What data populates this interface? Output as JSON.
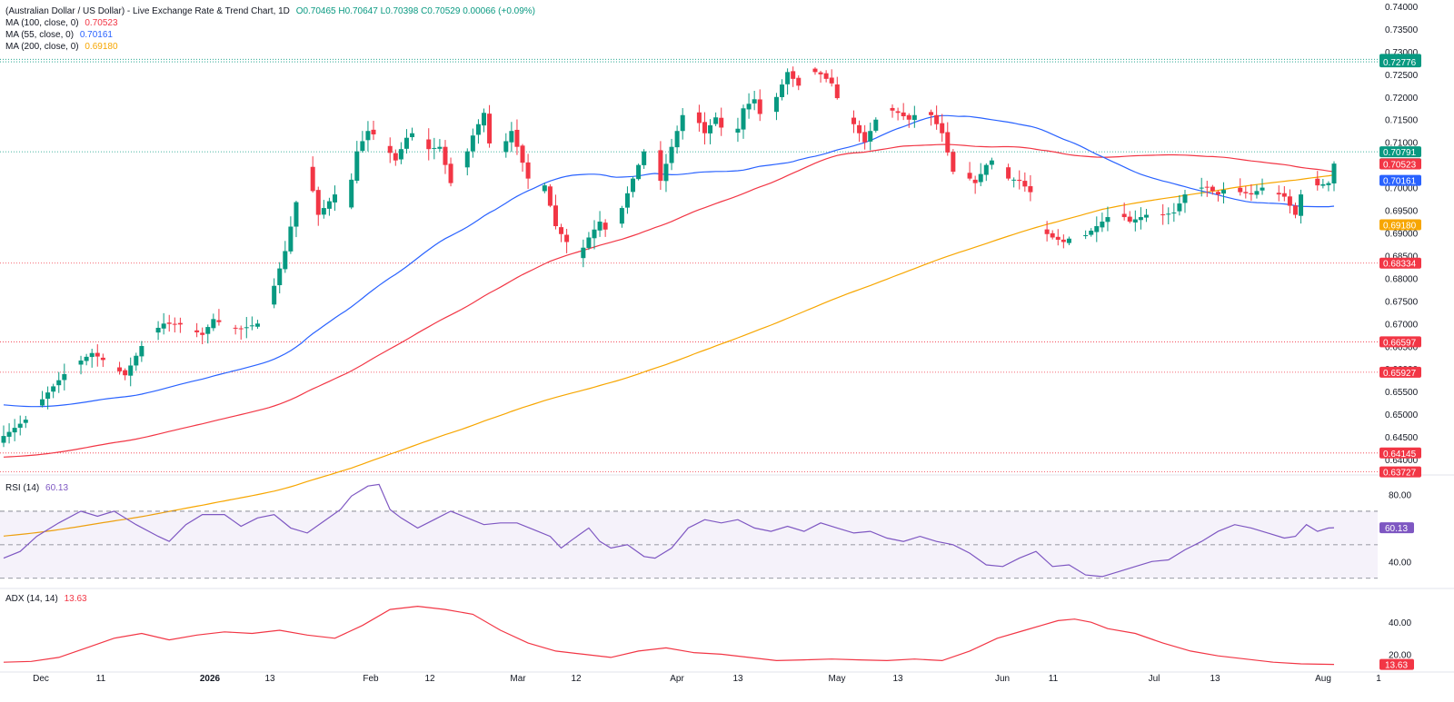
{
  "legend": {
    "title": "(Australian Dollar / US Dollar) - Live Exchange Rate & Trend Chart, 1D",
    "ohlc": {
      "o": "O0.70465",
      "h": "H0.70647",
      "l": "L0.70398",
      "c": "C0.70529",
      "chg": "0.00066 (+0.09%)"
    },
    "ma100": {
      "label": "MA (100, close, 0)",
      "value": "0.70523"
    },
    "ma55": {
      "label": "MA (55, close, 0)",
      "value": "0.70161"
    },
    "ma200": {
      "label": "MA (200, close, 0)",
      "value": "0.69180"
    },
    "rsi": {
      "label": "RSI (14)",
      "value": "60.13"
    },
    "adx": {
      "label": "ADX (14, 14)",
      "value": "13.63"
    }
  },
  "colors": {
    "up": "#089981",
    "down": "#f23645",
    "ma55": "#2962ff",
    "ma100": "#f23645",
    "ma200": "#f7a600",
    "rsi": "#7e57c2",
    "adx": "#f23645",
    "resistance": "#089981",
    "support": "#f23645"
  },
  "chart_data": [
    {
      "type": "candlestick",
      "title": "(Australian Dollar / US Dollar) - Live Exchange Rate & Trend Chart, 1D",
      "y_ticks": [
        "0.74000",
        "0.73500",
        "0.73000",
        "0.72500",
        "0.72000",
        "0.71500",
        "0.71000",
        "0.70500",
        "0.70000",
        "0.69500",
        "0.69000",
        "0.68500",
        "0.68000",
        "0.67500",
        "0.67000",
        "0.66500",
        "0.66000",
        "0.65500",
        "0.65000",
        "0.64500",
        "0.64000"
      ],
      "ylim": [
        0.6372,
        0.741
      ],
      "x_labels": [
        "Dec",
        "11",
        "2026",
        "13",
        "Feb",
        "12",
        "Mar",
        "12",
        "Apr",
        "13",
        "May",
        "13",
        "Jun",
        "11",
        "Jul",
        "13",
        "Aug",
        "1"
      ],
      "x_bold": [
        "2026"
      ],
      "levels": [
        {
          "value": 0.72831,
          "label": "0.72831",
          "kind": "resistance"
        },
        {
          "value": 0.72776,
          "label": "0.72776",
          "kind": "resistance"
        },
        {
          "value": 0.70791,
          "label": "0.70791",
          "kind": "resistance"
        },
        {
          "value": 0.68334,
          "label": "0.68334",
          "kind": "support"
        },
        {
          "value": 0.66597,
          "label": "0.66597",
          "kind": "support"
        },
        {
          "value": 0.65927,
          "label": "0.65927",
          "kind": "support"
        },
        {
          "value": 0.64145,
          "label": "0.64145",
          "kind": "support"
        },
        {
          "value": 0.63727,
          "label": "0.63727",
          "kind": "support"
        }
      ],
      "price_tags": [
        {
          "value": 0.70529,
          "label": "0.70529",
          "color": "#089981"
        },
        {
          "value": 0.70523,
          "label": "0.70523",
          "color": "#f23645"
        },
        {
          "value": 0.70161,
          "label": "0.70161",
          "color": "#2962ff"
        },
        {
          "value": 0.6918,
          "label": "0.69180",
          "color": "#f7a600"
        }
      ],
      "close_path": [
        [
          0,
          0.6452
        ],
        [
          4,
          0.6488
        ],
        [
          8,
          0.6548
        ],
        [
          12,
          0.6602
        ],
        [
          16,
          0.6635
        ],
        [
          19,
          0.6612
        ],
        [
          22,
          0.6586
        ],
        [
          26,
          0.6672
        ],
        [
          29,
          0.67
        ],
        [
          32,
          0.6698
        ],
        [
          36,
          0.6675
        ],
        [
          38,
          0.671
        ],
        [
          41,
          0.669
        ],
        [
          43,
          0.6688
        ],
        [
          46,
          0.67
        ],
        [
          48,
          0.6745
        ],
        [
          51,
          0.686
        ],
        [
          53,
          0.6968
        ],
        [
          55,
          0.7045
        ],
        [
          57,
          0.694
        ],
        [
          60,
          0.6985
        ],
        [
          62,
          0.6955
        ],
        [
          64,
          0.708
        ],
        [
          66,
          0.7125
        ],
        [
          68,
          0.711
        ],
        [
          71,
          0.706
        ],
        [
          73,
          0.711
        ],
        [
          75,
          0.713
        ],
        [
          77,
          0.7085
        ],
        [
          79,
          0.709
        ],
        [
          81,
          0.701
        ],
        [
          83,
          0.7045
        ],
        [
          85,
          0.7115
        ],
        [
          87,
          0.7165
        ],
        [
          89,
          0.703
        ],
        [
          90,
          0.708
        ],
        [
          92,
          0.7125
        ],
        [
          94,
          0.7055
        ],
        [
          96,
          0.6985
        ],
        [
          98,
          0.7005
        ],
        [
          100,
          0.6915
        ],
        [
          102,
          0.688
        ],
        [
          104,
          0.6845
        ],
        [
          106,
          0.689
        ],
        [
          108,
          0.6925
        ],
        [
          110,
          0.689
        ],
        [
          112,
          0.6955
        ],
        [
          114,
          0.702
        ],
        [
          116,
          0.708
        ],
        [
          118,
          0.708
        ],
        [
          119,
          0.7015
        ],
        [
          121,
          0.709
        ],
        [
          123,
          0.716
        ],
        [
          125,
          0.7165
        ],
        [
          127,
          0.712
        ],
        [
          129,
          0.7155
        ],
        [
          131,
          0.711
        ],
        [
          133,
          0.713
        ],
        [
          134,
          0.7175
        ],
        [
          136,
          0.7195
        ],
        [
          138,
          0.713
        ],
        [
          140,
          0.72
        ],
        [
          142,
          0.7255
        ],
        [
          144,
          0.7225
        ],
        [
          146,
          0.726
        ],
        [
          148,
          0.725
        ],
        [
          150,
          0.723
        ],
        [
          152,
          0.7165
        ],
        [
          154,
          0.714
        ],
        [
          156,
          0.71
        ],
        [
          158,
          0.715
        ],
        [
          160,
          0.7175
        ],
        [
          162,
          0.7165
        ],
        [
          164,
          0.715
        ],
        [
          166,
          0.717
        ],
        [
          168,
          0.716
        ],
        [
          170,
          0.712
        ],
        [
          172,
          0.7035
        ],
        [
          174,
          0.703
        ],
        [
          176,
          0.701
        ],
        [
          178,
          0.705
        ],
        [
          180,
          0.707
        ],
        [
          182,
          0.702
        ],
        [
          184,
          0.7015
        ],
        [
          186,
          0.699
        ],
        [
          188,
          0.6905
        ],
        [
          190,
          0.689
        ],
        [
          192,
          0.688
        ],
        [
          194,
          0.6895
        ],
        [
          196,
          0.6895
        ],
        [
          198,
          0.6915
        ],
        [
          200,
          0.6935
        ],
        [
          202,
          0.6945
        ],
        [
          204,
          0.6925
        ],
        [
          206,
          0.6935
        ],
        [
          208,
          0.6945
        ],
        [
          210,
          0.694
        ],
        [
          212,
          0.6945
        ],
        [
          214,
          0.6985
        ],
        [
          216,
          0.7
        ],
        [
          218,
          0.7
        ],
        [
          220,
          0.6985
        ],
        [
          222,
          0.7005
        ],
        [
          224,
          0.699
        ],
        [
          226,
          0.6985
        ],
        [
          228,
          0.7
        ],
        [
          230,
          0.699
        ],
        [
          232,
          0.698
        ],
        [
          234,
          0.694
        ],
        [
          236,
          0.703
        ],
        [
          238,
          0.7005
        ],
        [
          240,
          0.701
        ],
        [
          241,
          0.7053
        ]
      ],
      "rsi_range": [
        25,
        90
      ],
      "rsi_bands": [
        30,
        50,
        70
      ],
      "rsi_ticks": [
        "80.00",
        "40.00"
      ],
      "rsi_path": [
        [
          0,
          42
        ],
        [
          3,
          46
        ],
        [
          6,
          55
        ],
        [
          10,
          63
        ],
        [
          14,
          70
        ],
        [
          17,
          67
        ],
        [
          20,
          70
        ],
        [
          24,
          62
        ],
        [
          28,
          55
        ],
        [
          30,
          52
        ],
        [
          33,
          62
        ],
        [
          36,
          68
        ],
        [
          40,
          68
        ],
        [
          43,
          61
        ],
        [
          46,
          66
        ],
        [
          49,
          68
        ],
        [
          52,
          60
        ],
        [
          55,
          57
        ],
        [
          58,
          64
        ],
        [
          61,
          71
        ],
        [
          63,
          79
        ],
        [
          66,
          85
        ],
        [
          68,
          86
        ],
        [
          70,
          71
        ],
        [
          72,
          66
        ],
        [
          75,
          60
        ],
        [
          78,
          65
        ],
        [
          81,
          70
        ],
        [
          84,
          66
        ],
        [
          87,
          62
        ],
        [
          90,
          63
        ],
        [
          93,
          63
        ],
        [
          96,
          59
        ],
        [
          99,
          55
        ],
        [
          101,
          48
        ],
        [
          103,
          53
        ],
        [
          106,
          60
        ],
        [
          108,
          52
        ],
        [
          110,
          48
        ],
        [
          113,
          50
        ],
        [
          116,
          43
        ],
        [
          118,
          42
        ],
        [
          121,
          48
        ],
        [
          124,
          60
        ],
        [
          127,
          65
        ],
        [
          130,
          63
        ],
        [
          133,
          65
        ],
        [
          136,
          60
        ],
        [
          139,
          58
        ],
        [
          142,
          61
        ],
        [
          145,
          58
        ],
        [
          148,
          63
        ],
        [
          151,
          60
        ],
        [
          154,
          57
        ],
        [
          157,
          58
        ],
        [
          160,
          54
        ],
        [
          163,
          52
        ],
        [
          166,
          55
        ],
        [
          169,
          52
        ],
        [
          172,
          50
        ],
        [
          175,
          45
        ],
        [
          178,
          38
        ],
        [
          181,
          37
        ],
        [
          184,
          42
        ],
        [
          187,
          46
        ],
        [
          190,
          37
        ],
        [
          193,
          38
        ],
        [
          196,
          32
        ],
        [
          199,
          31
        ],
        [
          202,
          34
        ],
        [
          205,
          37
        ],
        [
          208,
          40
        ],
        [
          211,
          41
        ],
        [
          214,
          47
        ],
        [
          217,
          52
        ],
        [
          220,
          58
        ],
        [
          223,
          62
        ],
        [
          226,
          60
        ],
        [
          229,
          57
        ],
        [
          232,
          54
        ],
        [
          234,
          55
        ],
        [
          236,
          62
        ],
        [
          238,
          58
        ],
        [
          240,
          60
        ],
        [
          241,
          60.13
        ]
      ],
      "adx_range": [
        10,
        60
      ],
      "adx_ticks": [
        "40.00",
        "20.00"
      ],
      "adx_path": [
        [
          0,
          15
        ],
        [
          5,
          15.5
        ],
        [
          10,
          18
        ],
        [
          15,
          24
        ],
        [
          20,
          30
        ],
        [
          25,
          33
        ],
        [
          30,
          29
        ],
        [
          35,
          32
        ],
        [
          40,
          34
        ],
        [
          45,
          33
        ],
        [
          50,
          35
        ],
        [
          55,
          32
        ],
        [
          60,
          30
        ],
        [
          65,
          38
        ],
        [
          70,
          48
        ],
        [
          75,
          50
        ],
        [
          80,
          48
        ],
        [
          85,
          45
        ],
        [
          90,
          35
        ],
        [
          95,
          27
        ],
        [
          100,
          22
        ],
        [
          105,
          20
        ],
        [
          110,
          18
        ],
        [
          115,
          22
        ],
        [
          120,
          24
        ],
        [
          125,
          21
        ],
        [
          130,
          20
        ],
        [
          135,
          18
        ],
        [
          140,
          16
        ],
        [
          145,
          16.5
        ],
        [
          150,
          17
        ],
        [
          155,
          16.5
        ],
        [
          160,
          16
        ],
        [
          165,
          17
        ],
        [
          170,
          16
        ],
        [
          175,
          22
        ],
        [
          180,
          30
        ],
        [
          185,
          35
        ],
        [
          188,
          38
        ],
        [
          191,
          41
        ],
        [
          194,
          42
        ],
        [
          197,
          40
        ],
        [
          200,
          36
        ],
        [
          205,
          33
        ],
        [
          210,
          27
        ],
        [
          215,
          22
        ],
        [
          220,
          19
        ],
        [
          225,
          17
        ],
        [
          230,
          15
        ],
        [
          235,
          14
        ],
        [
          241,
          13.63
        ]
      ]
    }
  ]
}
